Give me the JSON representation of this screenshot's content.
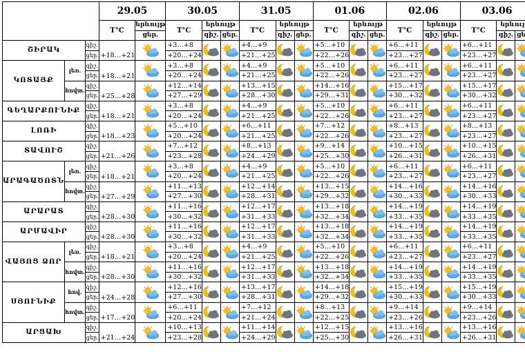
{
  "header": {
    "dates": [
      "29.05",
      "30.05",
      "31.05",
      "01.06",
      "02.06",
      "03.06"
    ],
    "temp": "T°C",
    "phenomenon": "երևույթ",
    "night": "գիշ.",
    "day": "ցեր."
  },
  "regions": [
    {
      "name": "ՇԻՐԱԿ",
      "rows": [
        {
          "first": "+18…+21",
          "days": [
            [
              "+3…+8",
              "+20…+24"
            ],
            [
              "+4…+9",
              "+21…+25"
            ],
            [
              "+5…+10",
              "+22…+26"
            ],
            [
              "+6…+11",
              "+23…+27"
            ],
            [
              "+6…+11",
              "+23…+27"
            ]
          ]
        }
      ]
    },
    {
      "name": "ԿՈՏԱՅՔ",
      "rows": [
        {
          "sub": "լեռ.",
          "first": "+18…+21",
          "days": [
            [
              "+3…+8",
              "+20…+24"
            ],
            [
              "+4…+9",
              "+21…+25"
            ],
            [
              "+5…+10",
              "+22…+26"
            ],
            [
              "+6…+11",
              "+23…+27"
            ],
            [
              "+6…+11",
              "+23…+27"
            ]
          ]
        },
        {
          "sub": "հովտ.",
          "first": "+25…+28",
          "days": [
            [
              "+12…+14",
              "+27…+29"
            ],
            [
              "+13…+15",
              "+28…+30"
            ],
            [
              "+14…+16",
              "+29…+31"
            ],
            [
              "+15…+17",
              "+30…+32"
            ],
            [
              "+15…+17",
              "+30…+32"
            ]
          ]
        }
      ]
    },
    {
      "name": "ԳԵՂԱՐՔՈՒՆԻՔ",
      "rows": [
        {
          "first": "+18…+21",
          "days": [
            [
              "+3…+8",
              "+20…+24"
            ],
            [
              "+4…+9",
              "+21…+25"
            ],
            [
              "+5…+10",
              "+22…+26"
            ],
            [
              "+6…+11",
              "+23…+27"
            ],
            [
              "+6…+11",
              "+23…+27"
            ]
          ]
        }
      ]
    },
    {
      "name": "ԼՈՌԻ",
      "rows": [
        {
          "first": "+18…+23",
          "days": [
            [
              "+5…+10",
              "+20…+24"
            ],
            [
              "+6…+11",
              "+21…+25"
            ],
            [
              "+7…+12",
              "+22…+26"
            ],
            [
              "+8…+13",
              "+23…+27"
            ],
            [
              "+8…+13",
              "+23…+27"
            ]
          ]
        }
      ]
    },
    {
      "name": "ՏԱՎՈՒՇ",
      "rows": [
        {
          "first": "+21…+26",
          "days": [
            [
              "+7…+12",
              "+23…+28"
            ],
            [
              "+8…+13",
              "+24…+29"
            ],
            [
              "+9…+14",
              "+25…+30"
            ],
            [
              "+10…+15",
              "+26…+31"
            ],
            [
              "+10…+15",
              "+26…+31"
            ]
          ]
        }
      ]
    },
    {
      "name": "ԱՐԱԳԱԾՈՏՆ",
      "rows": [
        {
          "sub": "լեռ.",
          "first": "+18…+21",
          "days": [
            [
              "+3…+8",
              "+20…+24"
            ],
            [
              "+4…+9",
              "+21…+25"
            ],
            [
              "+5…+10",
              "+22…+26"
            ],
            [
              "+6…+11",
              "+23…+27"
            ],
            [
              "+6…+11",
              "+23…+27"
            ]
          ]
        },
        {
          "sub": "հովտ.",
          "first": "+27…+29",
          "days": [
            [
              "+11…+13",
              "+27…+30"
            ],
            [
              "+12…+14",
              "+28…+31"
            ],
            [
              "+13…+15",
              "+29…+32"
            ],
            [
              "+14…+16",
              "+30…+33"
            ],
            [
              "+14…+16",
              "+30…+33"
            ]
          ]
        }
      ]
    },
    {
      "name": "ԱՐԱՐԱՏ",
      "rows": [
        {
          "first": "+28…+30",
          "days": [
            [
              "+11…+16",
              "+30…+32"
            ],
            [
              "+12…+17",
              "+31…+33"
            ],
            [
              "+13…+18",
              "+32…+34"
            ],
            [
              "+14…+19",
              "+33…+35"
            ],
            [
              "+14…+19",
              "+33…+35"
            ]
          ]
        }
      ]
    },
    {
      "name": "ԱՐՄԱՎԻՐ",
      "rows": [
        {
          "first": "+28…+30",
          "days": [
            [
              "+11…+16",
              "+30…+32"
            ],
            [
              "+12…+17",
              "+31…+33"
            ],
            [
              "+13…+18",
              "+32…+34"
            ],
            [
              "+14…+19",
              "+33…+35"
            ],
            [
              "+14…+19",
              "+33…+35"
            ]
          ]
        }
      ]
    },
    {
      "name": "ՎԱՅՈՑ ՁՈՐ",
      "rows": [
        {
          "sub": "լեռ.",
          "first": "+18…+21",
          "days": [
            [
              "+3…+8",
              "+20…+24"
            ],
            [
              "+4…+9",
              "+21…+25"
            ],
            [
              "+5…+10",
              "+22…+26"
            ],
            [
              "+6…+11",
              "+23…+27"
            ],
            [
              "+6…+11",
              "+23…+27"
            ]
          ]
        },
        {
          "sub": "հովտ.",
          "first": "+28…+30",
          "days": [
            [
              "+11…+16",
              "+30…+32"
            ],
            [
              "+12…+17",
              "+31…+33"
            ],
            [
              "+13…+18",
              "+32…+34"
            ],
            [
              "+14…+19",
              "+33…+35"
            ],
            [
              "+14…+19",
              "+33…+35"
            ]
          ]
        }
      ]
    },
    {
      "name": "ՍՅՈՒՆԻՔ",
      "rows": [
        {
          "sub": "հով.",
          "first": "+24…+28",
          "days": [
            [
              "+12…+16",
              "+27…+30"
            ],
            [
              "+13…+17",
              "+28…+31"
            ],
            [
              "+14…+18",
              "+29…+32"
            ],
            [
              "+15…+19",
              "+30…+33"
            ],
            [
              "+15…+19",
              "+30…+33"
            ]
          ]
        },
        {
          "sub": "հովտ.",
          "first": "+17…+20",
          "days": [
            [
              "+6…+11",
              "+20…+24"
            ],
            [
              "+7…+12",
              "+21…+24"
            ],
            [
              "+8…+13",
              "+22…+25"
            ],
            [
              "+9…+14",
              "+23…+26"
            ],
            [
              "+9…+14",
              "+23…+26"
            ]
          ]
        }
      ]
    },
    {
      "name": "ԱՐՑԱԽ",
      "rows": [
        {
          "first": "+21…+24",
          "days": [
            [
              "+10…+13",
              "+23…+28"
            ],
            [
              "+11…+14",
              "+24…+29"
            ],
            [
              "+12…+15",
              "+25…+30"
            ],
            [
              "+13…+16",
              "+26…+31"
            ],
            [
              "+13…+16",
              "+26…+31"
            ]
          ]
        }
      ]
    }
  ]
}
